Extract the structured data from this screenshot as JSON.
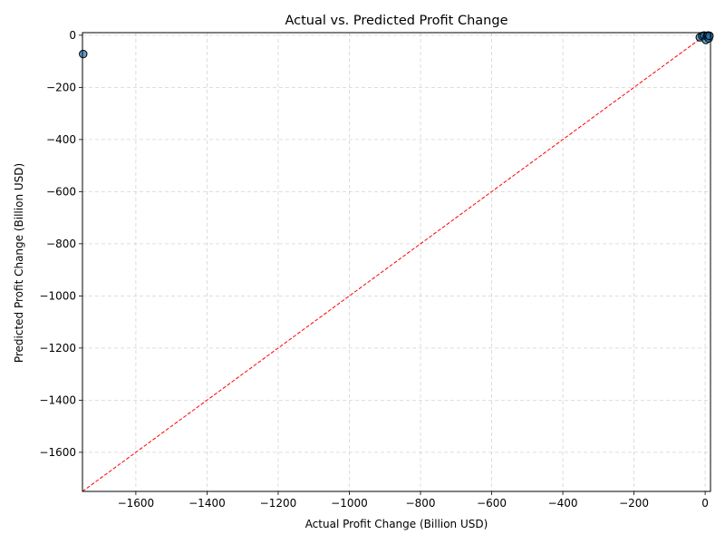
{
  "chart_data": {
    "type": "scatter",
    "title": "Actual vs. Predicted Profit Change",
    "xlabel": "Actual Profit Change (Billion USD)",
    "ylabel": "Predicted Profit Change (Billion USD)",
    "xlim": [
      -1750,
      15
    ],
    "ylim": [
      -1750,
      10
    ],
    "xticks": [
      -1600,
      -1400,
      -1200,
      -1000,
      -800,
      -600,
      -400,
      -200,
      0
    ],
    "yticks": [
      0,
      -200,
      -400,
      -600,
      -800,
      -1000,
      -1200,
      -1400,
      -1600
    ],
    "grid": true,
    "reference_line": {
      "style": "dashed",
      "color": "#ff0000",
      "from": -1750,
      "to": 15
    },
    "point_color": "#1f77b4",
    "points": [
      {
        "x": -1748,
        "y": -72
      },
      {
        "x": -15,
        "y": -8
      },
      {
        "x": -8,
        "y": -3
      },
      {
        "x": -3,
        "y": -1
      },
      {
        "x": 2,
        "y": -18
      },
      {
        "x": 5,
        "y": -4
      },
      {
        "x": 8,
        "y": -1
      },
      {
        "x": 10,
        "y": -12
      },
      {
        "x": 12,
        "y": -2
      }
    ]
  }
}
